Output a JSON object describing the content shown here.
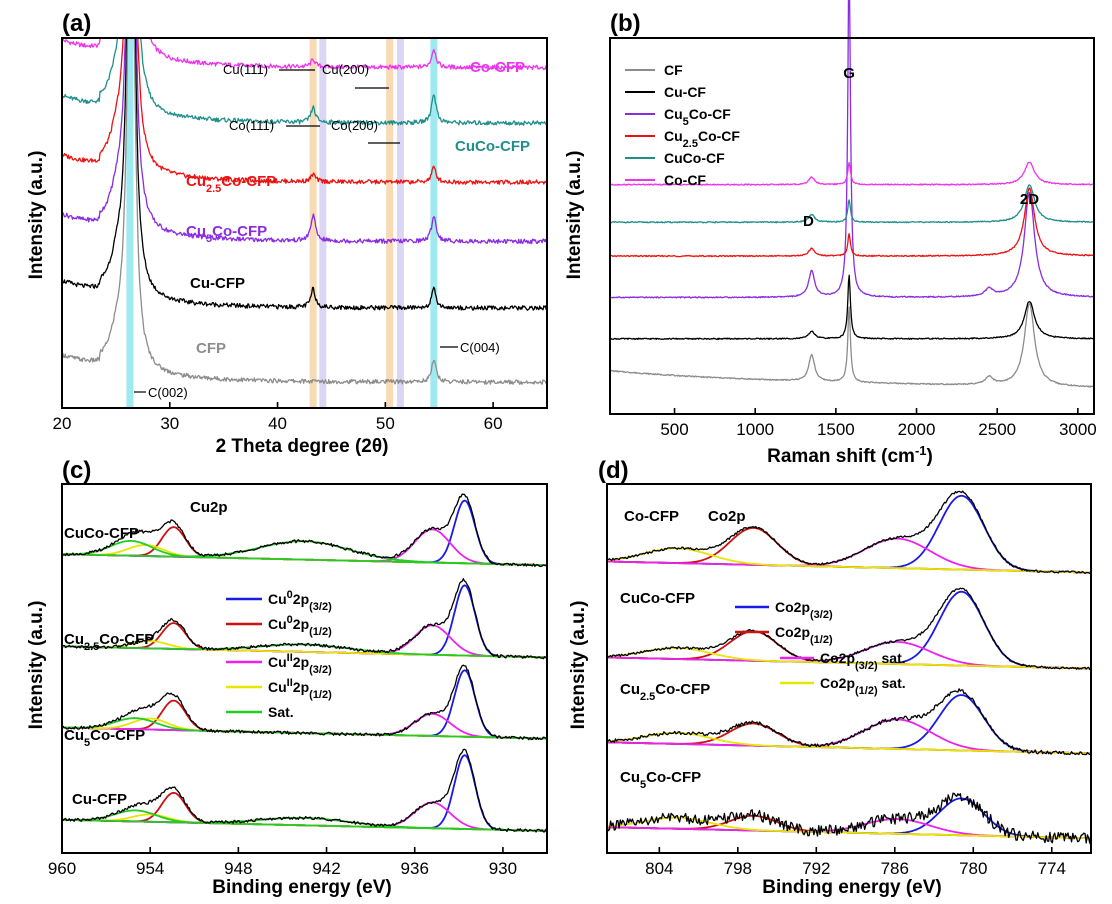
{
  "chart_data": [
    {
      "panel": "(a)",
      "type": "line",
      "title": "",
      "xlabel": "2 Theta degree (2θ)",
      "ylabel": "Intensity (a.u.)",
      "xlim": [
        20,
        65
      ],
      "xticks": [
        "20",
        "30",
        "40",
        "50",
        "60"
      ],
      "highlight_bands": [
        {
          "center": 26.3,
          "color": "#8ee6ef"
        },
        {
          "center": 43.3,
          "color": "#f7d3a8"
        },
        {
          "center": 44.2,
          "color": "#d3cff2"
        },
        {
          "center": 50.4,
          "color": "#f7d3a8"
        },
        {
          "center": 51.4,
          "color": "#d3cff2"
        },
        {
          "center": 54.5,
          "color": "#8ee6ef"
        }
      ],
      "annotations": [
        "Cu(111)",
        "Cu(200)",
        "Co(111)",
        "Co(200)",
        "C(002)",
        "C(004)"
      ],
      "series": [
        {
          "name": "Co-CFP",
          "color": "#ee33ee",
          "baseline": 0.92,
          "peaks": [
            {
              "x": 26.4,
              "h": 1.6
            },
            {
              "x": 43.3,
              "h": 0.02
            },
            {
              "x": 54.5,
              "h": 0.05
            }
          ]
        },
        {
          "name": "CuCo-CFP",
          "color": "#1f8f8c",
          "baseline": 0.77,
          "peaks": [
            {
              "x": 26.4,
              "h": 1.6
            },
            {
              "x": 43.3,
              "h": 0.04
            },
            {
              "x": 54.5,
              "h": 0.08
            }
          ]
        },
        {
          "name": "Cu2.5Co-CFP",
          "color": "#ee1111",
          "baseline": 0.61,
          "peaks": [
            {
              "x": 26.4,
              "h": 1.6
            },
            {
              "x": 43.3,
              "h": 0.02
            },
            {
              "x": 54.5,
              "h": 0.04
            }
          ]
        },
        {
          "name": "Cu5Co-CFP",
          "color": "#8a2be2",
          "baseline": 0.45,
          "peaks": [
            {
              "x": 26.4,
              "h": 1.6
            },
            {
              "x": 43.3,
              "h": 0.07
            },
            {
              "x": 54.5,
              "h": 0.07
            }
          ]
        },
        {
          "name": "Cu-CFP",
          "color": "#000000",
          "baseline": 0.27,
          "peaks": [
            {
              "x": 26.4,
              "h": 1.6
            },
            {
              "x": 43.3,
              "h": 0.05
            },
            {
              "x": 54.5,
              "h": 0.05
            }
          ]
        },
        {
          "name": "CFP",
          "color": "#8c8c8c",
          "baseline": 0.07,
          "peaks": [
            {
              "x": 26.4,
              "h": 1.6
            },
            {
              "x": 54.5,
              "h": 0.06
            }
          ]
        }
      ],
      "labels": [
        {
          "series": "Co-CFP",
          "main": "Co-CFP",
          "sub": "",
          "rest": ""
        },
        {
          "series": "CuCo-CFP",
          "main": "CuCo-CFP",
          "sub": "",
          "rest": ""
        },
        {
          "series": "Cu2.5Co-CFP",
          "main": "Cu",
          "sub": "2.5",
          "rest": "Co-CFP"
        },
        {
          "series": "Cu5Co-CFP",
          "main": "Cu",
          "sub": "5",
          "rest": "Co-CFP"
        },
        {
          "series": "Cu-CFP",
          "main": "Cu-CFP",
          "sub": "",
          "rest": ""
        },
        {
          "series": "CFP",
          "main": "CFP",
          "sub": "",
          "rest": ""
        }
      ]
    },
    {
      "panel": "(b)",
      "type": "line",
      "title": "",
      "xlabel": "Raman shift (cm-1)",
      "ylabel": "Intensity (a.u.)",
      "xlim": [
        100,
        3100
      ],
      "xticks": [
        "500",
        "1000",
        "1500",
        "2000",
        "2500",
        "3000"
      ],
      "peak_labels": [
        "D",
        "G",
        "2D"
      ],
      "legend_position": "top-left",
      "series": [
        {
          "name": "CF",
          "main": "CF",
          "sub": "",
          "rest": "",
          "color": "#8c8c8c",
          "baseline": 0.09,
          "D": 0.07,
          "G": 0.2,
          "twoD": 0.22
        },
        {
          "name": "Cu-CF",
          "main": "Cu-CF",
          "sub": "",
          "rest": "",
          "color": "#000000",
          "baseline": 0.2,
          "D": 0.02,
          "G": 0.17,
          "twoD": 0.1
        },
        {
          "name": "Cu5Co-CF",
          "main": "Cu",
          "sub": "5",
          "rest": "Co-CF",
          "color": "#8a2be2",
          "baseline": 0.31,
          "D": 0.07,
          "G": 0.9,
          "twoD": 0.28
        },
        {
          "name": "Cu2.5Co-CF",
          "main": "Cu",
          "sub": "2.5",
          "rest": "Co-CF",
          "color": "#ee1111",
          "baseline": 0.42,
          "D": 0.02,
          "G": 0.06,
          "twoD": 0.18
        },
        {
          "name": "CuCo-CF",
          "main": "CuCo-CF",
          "sub": "",
          "rest": "",
          "color": "#1f8f8c",
          "baseline": 0.51,
          "D": 0.02,
          "G": 0.06,
          "twoD": 0.1
        },
        {
          "name": "Co-CF",
          "main": "Co-CF",
          "sub": "",
          "rest": "",
          "color": "#ee33ee",
          "baseline": 0.61,
          "D": 0.02,
          "G": 0.06,
          "twoD": 0.06
        }
      ]
    },
    {
      "panel": "(c)",
      "type": "line",
      "title": "Cu2p",
      "xlabel": "Binding energy (eV)",
      "ylabel": "Intensity (a.u.)",
      "xlim": [
        960,
        927
      ],
      "xticks": [
        "960",
        "954",
        "948",
        "942",
        "936",
        "930"
      ],
      "legend": [
        {
          "main": "Cu",
          "sup": "0",
          "rest": "2p",
          "sub": "(3/2)",
          "color": "#1a1ae6"
        },
        {
          "main": "Cu",
          "sup": "0",
          "rest": "2p",
          "sub": "(1/2)",
          "color": "#cc1111"
        },
        {
          "main": "Cu",
          "sup": "II",
          "rest": "2p",
          "sub": "(3/2)",
          "color": "#ee22ee"
        },
        {
          "main": "Cu",
          "sup": "II",
          "rest": "2p",
          "sub": "(1/2)",
          "color": "#e6e600"
        },
        {
          "main": "Sat.",
          "sup": "",
          "rest": "",
          "sub": "",
          "color": "#22cc22"
        }
      ],
      "series": [
        {
          "name": "CuCo-CFP",
          "main": "CuCo-CFP",
          "sub": "",
          "rest": "",
          "baseline": 0.78,
          "components": [
            {
              "x": 932.6,
              "h": 0.17,
              "w": 0.7,
              "color": "#1a1ae6"
            },
            {
              "x": 952.4,
              "h": 0.08,
              "w": 0.8,
              "color": "#cc1111"
            },
            {
              "x": 934.8,
              "h": 0.09,
              "w": 1.2,
              "color": "#ee22ee"
            },
            {
              "x": 954.3,
              "h": 0.03,
              "w": 1.2,
              "color": "#e6e600"
            },
            {
              "x": 955.3,
              "h": 0.04,
              "w": 1.4,
              "color": "#22cc22"
            },
            {
              "x": 943.5,
              "h": 0.05,
              "w": 3.0,
              "color": "#22cc22"
            }
          ]
        },
        {
          "name": "Cu2.5Co-CFP",
          "main": "Cu",
          "sub": "2.5",
          "rest": "Co-CFP",
          "baseline": 0.53,
          "components": [
            {
              "x": 932.6,
              "h": 0.19,
              "w": 0.7,
              "color": "#1a1ae6"
            },
            {
              "x": 952.4,
              "h": 0.07,
              "w": 0.8,
              "color": "#cc1111"
            },
            {
              "x": 934.8,
              "h": 0.08,
              "w": 1.2,
              "color": "#ee22ee"
            },
            {
              "x": 954.0,
              "h": 0.02,
              "w": 1.2,
              "color": "#e6e600"
            },
            {
              "x": 943.5,
              "h": 0.02,
              "w": 3.0,
              "color": "#22cc22"
            }
          ]
        },
        {
          "name": "Cu5Co-CFP",
          "main": "Cu",
          "sub": "5",
          "rest": "Co-CFP",
          "baseline": 0.31,
          "components": [
            {
              "x": 932.6,
              "h": 0.18,
              "w": 0.7,
              "color": "#1a1ae6"
            },
            {
              "x": 952.4,
              "h": 0.08,
              "w": 0.8,
              "color": "#cc1111"
            },
            {
              "x": 934.8,
              "h": 0.06,
              "w": 1.2,
              "color": "#ee22ee"
            },
            {
              "x": 954.0,
              "h": 0.03,
              "w": 1.2,
              "color": "#e6e600"
            },
            {
              "x": 955.0,
              "h": 0.03,
              "w": 1.4,
              "color": "#22cc22"
            }
          ]
        },
        {
          "name": "Cu-CFP",
          "main": "Cu-CFP",
          "sub": "",
          "rest": "",
          "baseline": 0.06,
          "components": [
            {
              "x": 932.6,
              "h": 0.2,
              "w": 0.7,
              "color": "#1a1ae6"
            },
            {
              "x": 952.4,
              "h": 0.08,
              "w": 0.8,
              "color": "#cc1111"
            },
            {
              "x": 934.8,
              "h": 0.07,
              "w": 1.2,
              "color": "#ee22ee"
            },
            {
              "x": 954.0,
              "h": 0.02,
              "w": 1.2,
              "color": "#e6e600"
            },
            {
              "x": 955.0,
              "h": 0.03,
              "w": 1.4,
              "color": "#22cc22"
            },
            {
              "x": 943.5,
              "h": 0.02,
              "w": 3.0,
              "color": "#22cc22"
            }
          ]
        }
      ]
    },
    {
      "panel": "(d)",
      "type": "line",
      "title": "Co2p",
      "xlabel": "Binding energy (eV)",
      "ylabel": "Intensity (a.u.)",
      "xlim": [
        808,
        771
      ],
      "xticks": [
        "804",
        "798",
        "792",
        "786",
        "780",
        "774"
      ],
      "legend": [
        {
          "main": "Co2p",
          "sub": "(3/2)",
          "rest": "",
          "color": "#1a1ae6"
        },
        {
          "main": "Co2p",
          "sub": "(1/2)",
          "rest": "",
          "color": "#cc1111"
        },
        {
          "main": "Co2p",
          "sub": "(3/2)",
          "rest": " sat.",
          "color": "#ee22ee"
        },
        {
          "main": "Co2p",
          "sub": "(1/2)",
          "rest": " sat.",
          "color": "#e6e600"
        }
      ],
      "series": [
        {
          "name": "Co-CFP",
          "main": "Co-CFP",
          "sub": "",
          "rest": "",
          "baseline": 0.76,
          "components": [
            {
              "x": 780.9,
              "h": 0.2,
              "w": 1.7,
              "color": "#1a1ae6"
            },
            {
              "x": 796.8,
              "h": 0.1,
              "w": 1.8,
              "color": "#cc1111"
            },
            {
              "x": 785.8,
              "h": 0.08,
              "w": 2.5,
              "color": "#ee22ee"
            },
            {
              "x": 802.6,
              "h": 0.04,
              "w": 2.5,
              "color": "#e6e600"
            }
          ]
        },
        {
          "name": "CuCo-CFP",
          "main": "CuCo-CFP",
          "sub": "",
          "rest": "",
          "baseline": 0.5,
          "components": [
            {
              "x": 780.9,
              "h": 0.2,
              "w": 1.7,
              "color": "#1a1ae6"
            },
            {
              "x": 796.8,
              "h": 0.08,
              "w": 1.8,
              "color": "#cc1111"
            },
            {
              "x": 785.8,
              "h": 0.06,
              "w": 2.5,
              "color": "#ee22ee"
            },
            {
              "x": 802.6,
              "h": 0.03,
              "w": 2.5,
              "color": "#e6e600"
            }
          ]
        },
        {
          "name": "Cu2.5Co-CFP",
          "main": "Cu",
          "sub": "2.5",
          "rest": "Co-CFP",
          "baseline": 0.27,
          "components": [
            {
              "x": 780.9,
              "h": 0.15,
              "w": 1.7,
              "color": "#1a1ae6"
            },
            {
              "x": 796.8,
              "h": 0.06,
              "w": 1.8,
              "color": "#cc1111"
            },
            {
              "x": 785.8,
              "h": 0.08,
              "w": 2.5,
              "color": "#ee22ee"
            },
            {
              "x": 802.6,
              "h": 0.03,
              "w": 2.5,
              "color": "#e6e600"
            }
          ]
        },
        {
          "name": "Cu5Co-CFP",
          "main": "Cu",
          "sub": "5",
          "rest": "Co-CFP",
          "baseline": 0.04,
          "components": [
            {
              "x": 780.9,
              "h": 0.1,
              "w": 1.7,
              "color": "#1a1ae6"
            },
            {
              "x": 796.8,
              "h": 0.04,
              "w": 1.8,
              "color": "#cc1111"
            },
            {
              "x": 785.8,
              "h": 0.04,
              "w": 2.5,
              "color": "#ee22ee"
            },
            {
              "x": 802.6,
              "h": 0.03,
              "w": 2.5,
              "color": "#e6e600"
            }
          ]
        }
      ]
    }
  ]
}
